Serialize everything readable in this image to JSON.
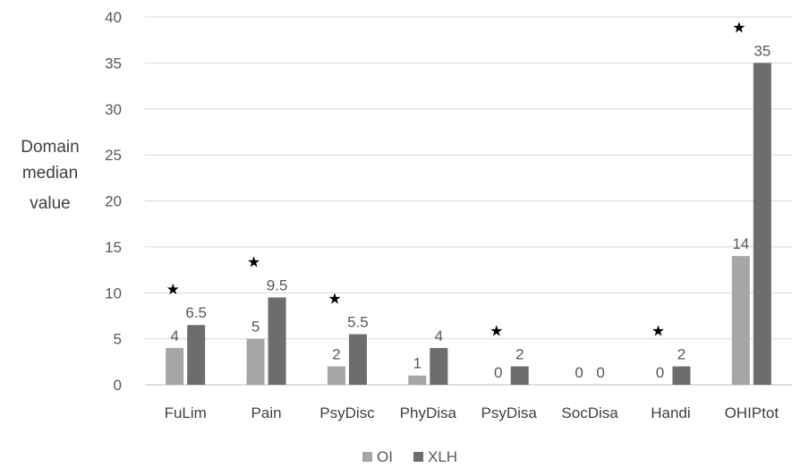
{
  "chart_data": {
    "type": "bar",
    "ylabel": [
      "Domain",
      "median",
      "value"
    ],
    "ylim": [
      0,
      40
    ],
    "yticks": [
      0,
      5,
      10,
      15,
      20,
      25,
      30,
      35,
      40
    ],
    "grid": true,
    "legend_position": "bottom",
    "categories": [
      "FuLim",
      "Pain",
      "PsyDisc",
      "PhyDisa",
      "PsyDisa",
      "SocDisa",
      "Handi",
      "OHIPtot"
    ],
    "series": [
      {
        "name": "OI",
        "color": "#a6a6a6",
        "values": [
          4,
          5,
          2,
          1,
          0,
          0,
          0,
          14
        ],
        "labels": [
          "4",
          "5",
          "2",
          "1",
          "0",
          "0",
          "0",
          "14"
        ]
      },
      {
        "name": "XLH",
        "color": "#6d6d6d",
        "values": [
          6.5,
          9.5,
          5.5,
          4,
          2,
          0,
          2,
          35
        ],
        "labels": [
          "6.5",
          "9.5",
          "5.5",
          "4",
          "2",
          "0",
          "2",
          "35"
        ]
      }
    ],
    "significance_marker": "★",
    "significant": [
      true,
      true,
      true,
      false,
      true,
      false,
      true,
      true
    ]
  }
}
